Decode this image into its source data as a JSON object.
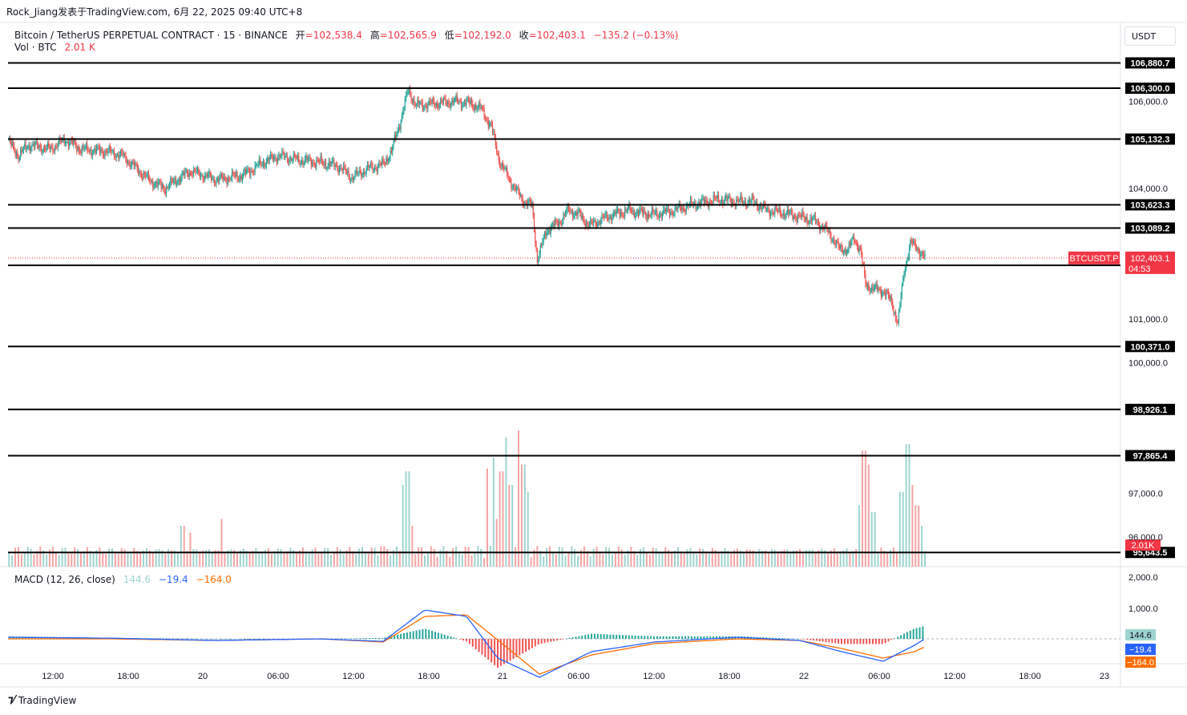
{
  "header": {
    "author": "Rock_Jiang发表于TradingView.com",
    "date": "6月 22, 2025 09:40 UTC+8"
  },
  "legend": {
    "symbol": "Bitcoin / TetherUS PERPETUAL CONTRACT · 15 · BINANCE",
    "open_label": "开",
    "open": "=102,538.4",
    "high_label": "高",
    "high": "=102,565.9",
    "low_label": "低",
    "low": "=102,192.0",
    "close_label": "收",
    "close": "=102,403.1",
    "change": "−135.2 (−0.13%)",
    "vol_label": "Vol · BTC",
    "vol_value": "2.01 K",
    "macd_label": "MACD (12, 26, close)",
    "macd_hist": "144.6",
    "macd_line": "−19.4",
    "macd_signal": "−164.0"
  },
  "currency_button": "USDT",
  "footer": {
    "brand": "TradingView"
  },
  "colors": {
    "up": "#26a69a",
    "down": "#ef5350",
    "up_vol": "#9ed4cf",
    "down_vol": "#f5a3a3",
    "macd_line": "#2962ff",
    "signal_line": "#ff6d00",
    "price_tag": "#f23645",
    "hline": "#000000"
  },
  "chart_data": {
    "type": "candlestick",
    "symbol": "BTCUSDT.P",
    "interval": "15",
    "price_axis_ticks": [
      "106,000.0",
      "104,000.0",
      "101,000.0",
      "100,000.0",
      "97,000.0",
      "96,000.0"
    ],
    "price_axis_range": [
      95500,
      107000
    ],
    "horizontal_levels": [
      "106,880.7",
      "106,300.0",
      "105,132.3",
      "103,623.3",
      "103,089.2",
      "102,234.9",
      "100,371.0",
      "98,926.1",
      "97,865.4",
      "95,643.5"
    ],
    "current_price": {
      "label": "BTCUSDT.P",
      "value": "102,403.1",
      "countdown": "04:53"
    },
    "volume_tag": "2.01K",
    "macd_axis_ticks": [
      "2,000.0",
      "1,000.0"
    ],
    "macd_tags": {
      "hist": "144.6",
      "macd": "−19.4",
      "signal": "−164.0"
    },
    "time_axis": [
      "12:00",
      "18:00",
      "20",
      "06:00",
      "12:00",
      "18:00",
      "21",
      "06:00",
      "12:00",
      "18:00",
      "22",
      "06:00",
      "12:00",
      "18:00",
      "23"
    ],
    "anchors": [
      [
        0,
        105100
      ],
      [
        10,
        104750
      ],
      [
        20,
        105000
      ],
      [
        40,
        104900
      ],
      [
        55,
        105120
      ],
      [
        70,
        104900
      ],
      [
        95,
        104850
      ],
      [
        110,
        104750
      ],
      [
        135,
        104200
      ],
      [
        150,
        104000
      ],
      [
        175,
        104400
      ],
      [
        200,
        104200
      ],
      [
        225,
        104300
      ],
      [
        245,
        104600
      ],
      [
        260,
        104750
      ],
      [
        280,
        104650
      ],
      [
        300,
        104600
      ],
      [
        318,
        104500
      ],
      [
        330,
        104250
      ],
      [
        345,
        104450
      ],
      [
        360,
        104550
      ],
      [
        368,
        104850
      ],
      [
        376,
        105500
      ],
      [
        384,
        106250
      ],
      [
        392,
        105900
      ],
      [
        410,
        105950
      ],
      [
        430,
        106000
      ],
      [
        445,
        105950
      ],
      [
        455,
        105800
      ],
      [
        464,
        105400
      ],
      [
        472,
        104600
      ],
      [
        485,
        104050
      ],
      [
        495,
        103700
      ],
      [
        503,
        103600
      ],
      [
        508,
        102350
      ],
      [
        517,
        103050
      ],
      [
        528,
        103200
      ],
      [
        538,
        103500
      ],
      [
        548,
        103400
      ],
      [
        558,
        103150
      ],
      [
        575,
        103350
      ],
      [
        595,
        103500
      ],
      [
        605,
        103450
      ],
      [
        620,
        103400
      ],
      [
        640,
        103500
      ],
      [
        660,
        103650
      ],
      [
        682,
        103750
      ],
      [
        700,
        103700
      ],
      [
        715,
        103700
      ],
      [
        728,
        103500
      ],
      [
        742,
        103450
      ],
      [
        760,
        103350
      ],
      [
        775,
        103250
      ],
      [
        785,
        103050
      ],
      [
        792,
        102850
      ],
      [
        798,
        102600
      ],
      [
        806,
        102600
      ],
      [
        812,
        102850
      ],
      [
        818,
        102600
      ],
      [
        823,
        101800
      ],
      [
        830,
        101700
      ],
      [
        840,
        101650
      ],
      [
        848,
        101400
      ],
      [
        854,
        100900
      ],
      [
        860,
        102100
      ],
      [
        866,
        102750
      ],
      [
        872,
        102650
      ],
      [
        880,
        102400
      ]
    ],
    "volume_spikes": {
      "460": 0.72,
      "466": 0.8,
      "470": 0.35,
      "474": 0.7,
      "478": 0.95,
      "482": 0.6,
      "490": 1.0,
      "494": 0.75,
      "498": 0.55,
      "818": 0.45,
      "822": 0.85,
      "826": 0.75,
      "830": 0.4,
      "858": 0.55,
      "864": 0.9,
      "868": 0.6,
      "872": 0.45,
      "876": 0.3,
      "380": 0.6,
      "384": 0.7,
      "388": 0.3,
      "360": 0.15,
      "168": 0.3,
      "175": 0.25,
      "205": 0.35
    },
    "macd_series": {
      "macd": [
        [
          0,
          0.05
        ],
        [
          100,
          0.02
        ],
        [
          200,
          -0.05
        ],
        [
          300,
          0.0
        ],
        [
          360,
          -0.08
        ],
        [
          400,
          0.9
        ],
        [
          440,
          0.7
        ],
        [
          470,
          -0.6
        ],
        [
          510,
          -1.2
        ],
        [
          560,
          -0.4
        ],
        [
          620,
          -0.1
        ],
        [
          700,
          0.05
        ],
        [
          760,
          -0.05
        ],
        [
          800,
          -0.4
        ],
        [
          840,
          -0.7
        ],
        [
          870,
          -0.2
        ],
        [
          880,
          0.0
        ]
      ],
      "signal": [
        [
          0,
          0.0
        ],
        [
          100,
          0.0
        ],
        [
          200,
          -0.05
        ],
        [
          300,
          0.0
        ],
        [
          360,
          -0.1
        ],
        [
          400,
          0.7
        ],
        [
          440,
          0.75
        ],
        [
          480,
          -0.3
        ],
        [
          510,
          -1.1
        ],
        [
          560,
          -0.5
        ],
        [
          620,
          -0.15
        ],
        [
          700,
          0.0
        ],
        [
          760,
          -0.05
        ],
        [
          800,
          -0.3
        ],
        [
          840,
          -0.6
        ],
        [
          870,
          -0.4
        ],
        [
          880,
          -0.25
        ]
      ]
    }
  }
}
